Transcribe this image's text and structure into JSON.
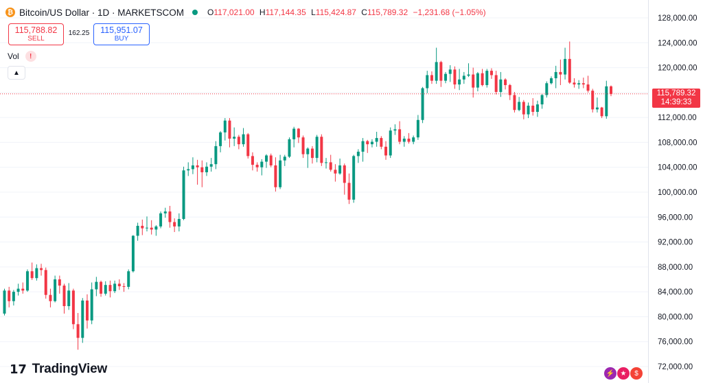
{
  "header": {
    "symbol": "Bitcoin/US Dollar · 1D · MARKETSCOM",
    "o_label": "O",
    "o": "117,021.00",
    "h_label": "H",
    "h": "117,144.35",
    "l_label": "L",
    "l": "115,424.87",
    "c_label": "C",
    "c": "115,789.32",
    "change": "−1,231.68 (−1.05%)"
  },
  "trade": {
    "sell_price": "115,788.82",
    "sell_label": "SELL",
    "spread": "162.25",
    "buy_price": "115,951.07",
    "buy_label": "BUY"
  },
  "volume": {
    "label": "Vol",
    "warning_icon": "!"
  },
  "last_price": {
    "price": "115,789.32",
    "countdown": "14:39:33"
  },
  "logo": {
    "mark": "17",
    "text": "TradingView"
  },
  "colors": {
    "up": "#089981",
    "down": "#f23645",
    "grid": "#f0f3fa",
    "axis_text": "#131722"
  },
  "chart_data": {
    "type": "candlestick",
    "y_ticks": [
      72000,
      76000,
      80000,
      84000,
      88000,
      92000,
      96000,
      100000,
      104000,
      108000,
      112000,
      116000,
      120000,
      124000,
      128000
    ],
    "last_price_line": 115789.32,
    "candles": [
      [
        80500,
        84500,
        80200,
        84200
      ],
      [
        84200,
        84800,
        81500,
        82500
      ],
      [
        82500,
        84300,
        81800,
        84000
      ],
      [
        84000,
        85300,
        83400,
        84500
      ],
      [
        84500,
        85500,
        83700,
        84200
      ],
      [
        84200,
        87600,
        84000,
        87300
      ],
      [
        87300,
        88700,
        85900,
        86200
      ],
      [
        86200,
        88400,
        85800,
        87800
      ],
      [
        87800,
        88500,
        86600,
        87500
      ],
      [
        87500,
        87900,
        82900,
        83500
      ],
      [
        83500,
        84500,
        81500,
        82500
      ],
      [
        82500,
        86600,
        82300,
        86000
      ],
      [
        86000,
        86600,
        83700,
        85000
      ],
      [
        85000,
        85300,
        80500,
        81700
      ],
      [
        81700,
        85400,
        81100,
        84200
      ],
      [
        84200,
        84500,
        78000,
        78800
      ],
      [
        78800,
        80600,
        74700,
        76600
      ],
      [
        76600,
        83000,
        75800,
        82600
      ],
      [
        82600,
        83600,
        78100,
        79400
      ],
      [
        79400,
        85500,
        78800,
        84400
      ],
      [
        84400,
        86400,
        83300,
        85600
      ],
      [
        85600,
        85800,
        83200,
        83700
      ],
      [
        83700,
        85700,
        83400,
        85100
      ],
      [
        85100,
        85800,
        83100,
        84100
      ],
      [
        84100,
        85800,
        83800,
        85300
      ],
      [
        85300,
        86000,
        84300,
        84900
      ],
      [
        84900,
        85400,
        84000,
        84800
      ],
      [
        84800,
        87600,
        84400,
        87300
      ],
      [
        87300,
        93100,
        87100,
        93000
      ],
      [
        93000,
        95100,
        92200,
        94600
      ],
      [
        94600,
        95600,
        93100,
        94200
      ],
      [
        94200,
        96100,
        93700,
        94300
      ],
      [
        94300,
        95500,
        93200,
        94000
      ],
      [
        94000,
        94700,
        93000,
        94500
      ],
      [
        94500,
        96900,
        94200,
        96600
      ],
      [
        96600,
        97500,
        95900,
        96900
      ],
      [
        96900,
        97800,
        94300,
        95200
      ],
      [
        95200,
        95800,
        93600,
        94500
      ],
      [
        94500,
        96600,
        93700,
        95700
      ],
      [
        95700,
        104100,
        95500,
        103500
      ],
      [
        103500,
        104800,
        102600,
        103700
      ],
      [
        103700,
        105600,
        102900,
        104300
      ],
      [
        104300,
        105200,
        101200,
        104000
      ],
      [
        104000,
        105100,
        100800,
        103200
      ],
      [
        103200,
        104800,
        102600,
        104100
      ],
      [
        104100,
        105500,
        103300,
        104500
      ],
      [
        104500,
        108200,
        103700,
        107400
      ],
      [
        107400,
        109800,
        106400,
        109600
      ],
      [
        109600,
        111900,
        108300,
        111500
      ],
      [
        111500,
        111900,
        107200,
        108600
      ],
      [
        108600,
        110400,
        107400,
        108900
      ],
      [
        108900,
        109200,
        106900,
        107700
      ],
      [
        107700,
        110300,
        107300,
        109300
      ],
      [
        109300,
        109500,
        105400,
        105800
      ],
      [
        105800,
        106400,
        103500,
        104400
      ],
      [
        104400,
        104800,
        103300,
        104000
      ],
      [
        104000,
        105300,
        102700,
        104900
      ],
      [
        104900,
        106100,
        103900,
        105900
      ],
      [
        105900,
        106200,
        104000,
        104300
      ],
      [
        104300,
        105600,
        100100,
        100800
      ],
      [
        100800,
        106000,
        100500,
        105100
      ],
      [
        105100,
        106000,
        104200,
        105700
      ],
      [
        105700,
        108800,
        105500,
        108500
      ],
      [
        108500,
        110500,
        107200,
        110200
      ],
      [
        110200,
        110300,
        107900,
        108800
      ],
      [
        108800,
        109100,
        105500,
        106100
      ],
      [
        106100,
        107200,
        103900,
        107000
      ],
      [
        107000,
        107400,
        104600,
        105500
      ],
      [
        105500,
        109200,
        104800,
        108900
      ],
      [
        108900,
        109300,
        104200,
        104700
      ],
      [
        104700,
        105500,
        103800,
        104800
      ],
      [
        104800,
        106000,
        103300,
        103600
      ],
      [
        103600,
        104500,
        101700,
        103000
      ],
      [
        103000,
        105400,
        102800,
        104300
      ],
      [
        104300,
        104600,
        99600,
        101500
      ],
      [
        101500,
        103000,
        98100,
        98800
      ],
      [
        98800,
        106000,
        98300,
        105800
      ],
      [
        105800,
        106900,
        104700,
        106500
      ],
      [
        106500,
        108700,
        104900,
        108200
      ],
      [
        108200,
        108400,
        106300,
        107700
      ],
      [
        107700,
        108500,
        107200,
        108100
      ],
      [
        108100,
        109700,
        107300,
        108700
      ],
      [
        108700,
        109000,
        106900,
        107300
      ],
      [
        107300,
        108200,
        105200,
        105900
      ],
      [
        105900,
        110400,
        105500,
        109900
      ],
      [
        109900,
        110900,
        109200,
        110100
      ],
      [
        110100,
        111400,
        107700,
        108100
      ],
      [
        108100,
        109000,
        107300,
        108600
      ],
      [
        108600,
        109500,
        107800,
        108100
      ],
      [
        108100,
        109100,
        107700,
        108800
      ],
      [
        108800,
        112400,
        108400,
        111600
      ],
      [
        111600,
        116900,
        111100,
        116700
      ],
      [
        116700,
        119500,
        115900,
        118800
      ],
      [
        118800,
        119400,
        117400,
        117900
      ],
      [
        117900,
        123200,
        117400,
        120900
      ],
      [
        120900,
        121100,
        116900,
        117900
      ],
      [
        117900,
        119300,
        117500,
        119000
      ],
      [
        119000,
        120400,
        117700,
        119700
      ],
      [
        119700,
        120200,
        116600,
        117300
      ],
      [
        117300,
        119800,
        116400,
        118100
      ],
      [
        118100,
        119300,
        117400,
        118700
      ],
      [
        118700,
        120700,
        118500,
        118900
      ],
      [
        118900,
        120000,
        115200,
        116800
      ],
      [
        116800,
        119300,
        116200,
        119100
      ],
      [
        119100,
        119800,
        117000,
        117200
      ],
      [
        117200,
        119800,
        116800,
        119500
      ],
      [
        119500,
        119900,
        118200,
        118800
      ],
      [
        118800,
        119500,
        115700,
        116100
      ],
      [
        116100,
        119300,
        115300,
        118100
      ],
      [
        118100,
        118300,
        116500,
        117200
      ],
      [
        117200,
        117400,
        114800,
        115600
      ],
      [
        115600,
        116100,
        112800,
        113200
      ],
      [
        113200,
        115300,
        113000,
        114500
      ],
      [
        114500,
        114800,
        111700,
        112500
      ],
      [
        112500,
        114400,
        111900,
        113900
      ],
      [
        113900,
        115100,
        112300,
        112900
      ],
      [
        112900,
        114700,
        112100,
        114100
      ],
      [
        114100,
        115800,
        113400,
        115600
      ],
      [
        115600,
        117800,
        115200,
        117500
      ],
      [
        117500,
        118600,
        117300,
        118300
      ],
      [
        118300,
        120300,
        116700,
        119300
      ],
      [
        119300,
        121300,
        117200,
        118900
      ],
      [
        118900,
        123200,
        118100,
        121400
      ],
      [
        121400,
        124200,
        117400,
        117600
      ],
      [
        117600,
        118300,
        116800,
        117300
      ],
      [
        117300,
        118000,
        116600,
        117500
      ],
      [
        117500,
        118400,
        116700,
        117300
      ],
      [
        117300,
        118700,
        116000,
        116300
      ],
      [
        116300,
        116600,
        112800,
        113300
      ],
      [
        113300,
        115200,
        112800,
        113600
      ],
      [
        113600,
        113700,
        111900,
        112200
      ],
      [
        112200,
        117900,
        111800,
        117000
      ],
      [
        117000,
        117144.35,
        115424.87,
        115789.32
      ]
    ]
  }
}
